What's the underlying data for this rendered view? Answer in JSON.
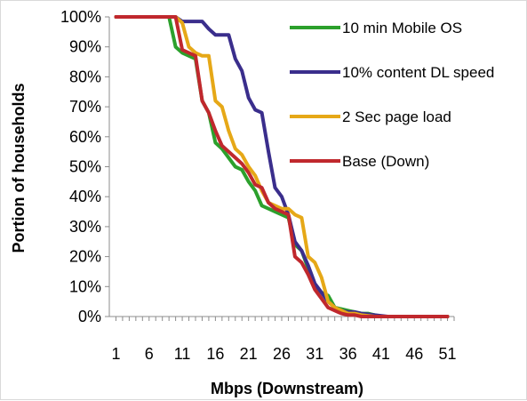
{
  "chart_data": {
    "type": "line",
    "xlabel": "Mbps (Downstream)",
    "ylabel": "Portion of households",
    "xlim": [
      0,
      52
    ],
    "ylim": [
      0,
      100
    ],
    "x_ticks": [
      1,
      6,
      11,
      16,
      21,
      26,
      31,
      36,
      41,
      46,
      51
    ],
    "y_ticks": [
      0,
      10,
      20,
      30,
      40,
      50,
      60,
      70,
      80,
      90,
      100
    ],
    "y_tick_format": "percent",
    "grid": false,
    "legend_position": "right-inside",
    "series": [
      {
        "name": "10 min Mobile OS",
        "color": "#2ca02c",
        "x": [
          1,
          9,
          10,
          11,
          12,
          13,
          14,
          15,
          16,
          17,
          18,
          19,
          20,
          21,
          22,
          23,
          24,
          25,
          26,
          27,
          28,
          29,
          30,
          31,
          32,
          33,
          34,
          35,
          36,
          37,
          38,
          39,
          40,
          41,
          42,
          51
        ],
        "values": [
          100,
          100,
          90,
          88,
          87,
          86,
          72,
          68,
          58,
          56,
          53,
          50,
          49,
          45,
          42,
          37,
          36,
          35,
          34,
          33,
          24,
          22,
          16,
          10,
          8,
          7,
          3,
          2.5,
          2,
          1.5,
          1,
          1,
          0.5,
          0,
          0,
          0
        ]
      },
      {
        "name": "10% content DL speed",
        "color": "#3a2e8c",
        "x": [
          1,
          10,
          11,
          12,
          13,
          14,
          15,
          16,
          17,
          18,
          19,
          20,
          21,
          22,
          23,
          24,
          25,
          26,
          27,
          28,
          29,
          30,
          31,
          32,
          33,
          34,
          35,
          36,
          37,
          38,
          40,
          42,
          51
        ],
        "values": [
          100,
          100,
          98.5,
          98.5,
          98.5,
          98.5,
          96,
          94,
          94,
          94,
          86,
          82,
          73,
          69,
          68,
          55,
          43,
          40,
          34,
          25,
          22,
          17,
          11,
          8,
          5,
          3,
          2,
          1.5,
          1.5,
          1,
          0.5,
          0,
          0
        ]
      },
      {
        "name": "2 Sec page load",
        "color": "#e6a817",
        "x": [
          1,
          10,
          11,
          12,
          13,
          14,
          15,
          16,
          17,
          18,
          19,
          20,
          21,
          22,
          23,
          24,
          25,
          26,
          27,
          28,
          29,
          30,
          31,
          32,
          33,
          34,
          35,
          36,
          37,
          38,
          40,
          42,
          51
        ],
        "values": [
          100,
          100,
          98,
          90,
          88,
          87,
          87,
          72,
          70,
          62,
          56,
          54,
          50,
          47,
          42,
          38,
          37,
          36,
          36,
          34,
          33,
          20,
          18,
          13,
          5,
          3,
          2,
          1,
          1,
          0.5,
          0,
          0,
          0
        ]
      },
      {
        "name": "Base (Down)",
        "color": "#c0282d",
        "x": [
          1,
          10,
          11,
          12,
          13,
          14,
          15,
          16,
          17,
          18,
          19,
          20,
          21,
          22,
          23,
          24,
          25,
          26,
          27,
          28,
          29,
          30,
          31,
          32,
          33,
          34,
          35,
          36,
          37,
          38,
          40,
          42,
          51
        ],
        "values": [
          100,
          100,
          89,
          88,
          87,
          72,
          68,
          62,
          57,
          55,
          53,
          51,
          48,
          44,
          43,
          38,
          36,
          35,
          34,
          20,
          18,
          14,
          9,
          6,
          3,
          2,
          1,
          0.5,
          0.5,
          0,
          0,
          0,
          0
        ]
      }
    ]
  }
}
